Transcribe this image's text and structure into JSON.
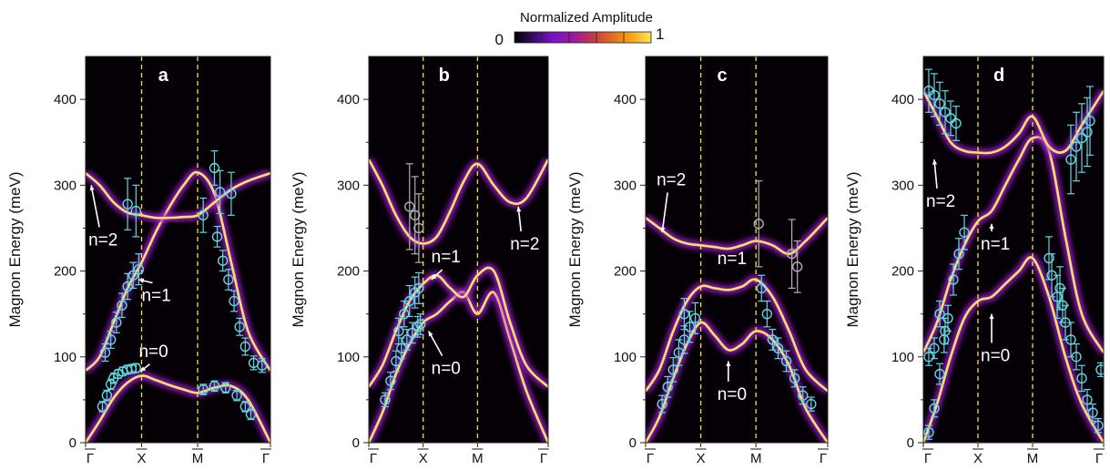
{
  "colorbar": {
    "title": "Normalized Amplitude",
    "min_label": "0",
    "max_label": "1",
    "stops": [
      "#000000",
      "#3a0a6e",
      "#7b12c8",
      "#9c179e",
      "#c23a4a",
      "#e46a1e",
      "#f9a51a",
      "#fce552"
    ]
  },
  "colors": {
    "background": "#050005",
    "band_core": "#ffe066",
    "band_glow": "#9b1fd0",
    "data_point": "#5fd8e0",
    "data_point_grey": "#b0b0b0",
    "hs_line": "#f5e530"
  },
  "y_axis_label": "Magnon Energy (meV)",
  "chart_data": [
    {
      "type": "line",
      "panel": "a",
      "ylim": [
        0,
        450
      ],
      "yticks": [
        0,
        100,
        200,
        300,
        400
      ],
      "x_ticks": [
        "Γ",
        "X",
        "M",
        "Γ"
      ],
      "x_ticks_overlined": true,
      "x_positions": [
        0,
        1,
        2,
        3.3
      ],
      "series": [
        {
          "x": [
            0,
            0.25,
            0.5,
            0.75,
            1,
            1.25,
            1.5,
            1.75,
            2,
            2.3,
            2.6,
            2.9,
            3.3
          ],
          "values": [
            0,
            25,
            52,
            70,
            78,
            73,
            67,
            62,
            58,
            64,
            66,
            50,
            0
          ]
        },
        {
          "x": [
            0,
            0.25,
            0.5,
            0.75,
            1,
            1.25,
            1.5,
            1.75,
            2,
            2.3,
            2.6,
            2.9,
            3.3
          ],
          "values": [
            84,
            100,
            140,
            180,
            210,
            245,
            275,
            300,
            315,
            290,
            210,
            130,
            84
          ]
        },
        {
          "x": [
            0,
            0.25,
            0.5,
            0.75,
            1,
            1.25,
            1.5,
            1.75,
            2,
            2.3,
            2.6,
            2.9,
            3.3
          ],
          "values": [
            314,
            300,
            280,
            268,
            265,
            262,
            262,
            263,
            265,
            280,
            295,
            305,
            314
          ]
        }
      ],
      "points": [
        {
          "x": 0.3,
          "y": 42,
          "err": 6
        },
        {
          "x": 0.38,
          "y": 55,
          "err": 6
        },
        {
          "x": 0.45,
          "y": 68,
          "err": 6
        },
        {
          "x": 0.5,
          "y": 75,
          "err": 6
        },
        {
          "x": 0.58,
          "y": 80,
          "err": 5
        },
        {
          "x": 0.66,
          "y": 83,
          "err": 5
        },
        {
          "x": 0.74,
          "y": 85,
          "err": 5
        },
        {
          "x": 0.82,
          "y": 86,
          "err": 5
        },
        {
          "x": 0.9,
          "y": 87,
          "err": 5
        },
        {
          "x": 0.35,
          "y": 105,
          "err": 10
        },
        {
          "x": 0.45,
          "y": 120,
          "err": 10
        },
        {
          "x": 0.55,
          "y": 140,
          "err": 12
        },
        {
          "x": 0.65,
          "y": 160,
          "err": 14
        },
        {
          "x": 0.75,
          "y": 182,
          "err": 15
        },
        {
          "x": 0.85,
          "y": 195,
          "err": 15
        },
        {
          "x": 0.95,
          "y": 202,
          "err": 18
        },
        {
          "x": 0.75,
          "y": 278,
          "err": 30
        },
        {
          "x": 0.9,
          "y": 270,
          "err": 30
        },
        {
          "x": 2.1,
          "y": 265,
          "err": 20
        },
        {
          "x": 2.3,
          "y": 320,
          "err": 20
        },
        {
          "x": 2.4,
          "y": 292,
          "err": 25
        },
        {
          "x": 2.6,
          "y": 290,
          "err": 25
        },
        {
          "x": 2.35,
          "y": 240,
          "err": 12
        },
        {
          "x": 2.45,
          "y": 212,
          "err": 12
        },
        {
          "x": 2.55,
          "y": 190,
          "err": 12
        },
        {
          "x": 2.65,
          "y": 165,
          "err": 12
        },
        {
          "x": 2.75,
          "y": 135,
          "err": 10
        },
        {
          "x": 2.85,
          "y": 112,
          "err": 10
        },
        {
          "x": 3.0,
          "y": 93,
          "err": 8
        },
        {
          "x": 3.15,
          "y": 90,
          "err": 8
        },
        {
          "x": 2.1,
          "y": 62,
          "err": 6
        },
        {
          "x": 2.3,
          "y": 66,
          "err": 6
        },
        {
          "x": 2.5,
          "y": 64,
          "err": 6
        },
        {
          "x": 2.7,
          "y": 55,
          "err": 6
        },
        {
          "x": 2.85,
          "y": 42,
          "err": 6
        },
        {
          "x": 2.95,
          "y": 33,
          "err": 6
        }
      ],
      "annotations": [
        {
          "text": "n=2",
          "x": 0.05,
          "y": 230,
          "arrow_to": [
            0.1,
            300
          ]
        },
        {
          "text": "n=1",
          "x": 1.0,
          "y": 165,
          "arrow_to": [
            0.95,
            190
          ]
        },
        {
          "text": "n=0",
          "x": 0.95,
          "y": 100,
          "arrow_to": [
            0.98,
            83
          ]
        }
      ]
    },
    {
      "type": "line",
      "panel": "b",
      "ylim": [
        0,
        450
      ],
      "yticks": [
        0,
        100,
        200,
        300,
        400
      ],
      "x_ticks": [
        "Γ",
        "X",
        "M",
        "Γ"
      ],
      "x_ticks_overlined": true,
      "x_positions": [
        0,
        1,
        2,
        3.3
      ],
      "series": [
        {
          "x": [
            0,
            0.25,
            0.5,
            0.75,
            1,
            1.25,
            1.5,
            1.75,
            2,
            2.3,
            2.6,
            2.9,
            3.3
          ],
          "values": [
            0,
            35,
            80,
            115,
            140,
            150,
            165,
            175,
            150,
            175,
            120,
            60,
            0
          ]
        },
        {
          "x": [
            0,
            0.25,
            0.5,
            0.75,
            1,
            1.25,
            1.5,
            1.75,
            2,
            2.3,
            2.6,
            2.9,
            3.3
          ],
          "values": [
            65,
            90,
            130,
            165,
            185,
            195,
            180,
            170,
            195,
            200,
            140,
            90,
            65
          ]
        },
        {
          "x": [
            0,
            0.25,
            0.5,
            0.75,
            1,
            1.25,
            1.5,
            1.75,
            2,
            2.3,
            2.6,
            2.9,
            3.3
          ],
          "values": [
            330,
            300,
            265,
            240,
            232,
            240,
            270,
            305,
            325,
            300,
            280,
            285,
            330
          ]
        }
      ],
      "points": [
        {
          "x": 0.3,
          "y": 50,
          "err": 8
        },
        {
          "x": 0.4,
          "y": 72,
          "err": 10
        },
        {
          "x": 0.5,
          "y": 95,
          "err": 12
        },
        {
          "x": 0.6,
          "y": 110,
          "err": 12
        },
        {
          "x": 0.7,
          "y": 120,
          "err": 12
        },
        {
          "x": 0.8,
          "y": 128,
          "err": 12
        },
        {
          "x": 0.9,
          "y": 135,
          "err": 12
        },
        {
          "x": 0.95,
          "y": 138,
          "err": 12
        },
        {
          "x": 0.55,
          "y": 130,
          "err": 15
        },
        {
          "x": 0.65,
          "y": 150,
          "err": 15
        },
        {
          "x": 0.75,
          "y": 165,
          "err": 18
        },
        {
          "x": 0.85,
          "y": 175,
          "err": 18
        },
        {
          "x": 0.92,
          "y": 180,
          "err": 18
        },
        {
          "x": 0.75,
          "y": 275,
          "err": 50
        },
        {
          "x": 0.85,
          "y": 265,
          "err": 45
        },
        {
          "x": 0.92,
          "y": 250,
          "err": 40
        }
      ],
      "annotations": [
        {
          "text": "n=1",
          "x": 1.15,
          "y": 210,
          "arrow_to": [
            1.15,
            190
          ]
        },
        {
          "text": "n=0",
          "x": 1.15,
          "y": 80,
          "arrow_to": [
            1.1,
            130
          ]
        },
        {
          "text": "n=2",
          "x": 2.6,
          "y": 225,
          "arrow_to": [
            2.75,
            275
          ]
        }
      ]
    },
    {
      "type": "line",
      "panel": "c",
      "ylim": [
        0,
        450
      ],
      "yticks": [
        0,
        100,
        200,
        300,
        400
      ],
      "x_ticks": [
        "Γ",
        "X",
        "M",
        "Γ"
      ],
      "x_ticks_overlined": true,
      "x_positions": [
        0,
        1,
        2,
        3.3
      ],
      "series": [
        {
          "x": [
            0,
            0.25,
            0.5,
            0.75,
            1,
            1.25,
            1.5,
            1.75,
            2,
            2.3,
            2.6,
            2.9,
            3.3
          ],
          "values": [
            0,
            30,
            75,
            115,
            140,
            125,
            108,
            115,
            130,
            120,
            90,
            40,
            0
          ]
        },
        {
          "x": [
            0,
            0.25,
            0.5,
            0.75,
            1,
            1.25,
            1.5,
            1.75,
            2,
            2.3,
            2.6,
            2.9,
            3.3
          ],
          "values": [
            60,
            85,
            130,
            165,
            182,
            180,
            178,
            182,
            190,
            170,
            130,
            85,
            60
          ]
        },
        {
          "x": [
            0,
            0.25,
            0.5,
            0.75,
            1,
            1.25,
            1.5,
            1.75,
            2,
            2.3,
            2.6,
            2.9,
            3.3
          ],
          "values": [
            262,
            250,
            238,
            232,
            230,
            228,
            226,
            230,
            235,
            230,
            220,
            235,
            262
          ]
        }
      ],
      "points": [
        {
          "x": 0.3,
          "y": 45,
          "err": 10
        },
        {
          "x": 0.4,
          "y": 65,
          "err": 12
        },
        {
          "x": 0.5,
          "y": 85,
          "err": 14
        },
        {
          "x": 0.6,
          "y": 105,
          "err": 15
        },
        {
          "x": 0.7,
          "y": 120,
          "err": 16
        },
        {
          "x": 0.8,
          "y": 135,
          "err": 18
        },
        {
          "x": 0.9,
          "y": 145,
          "err": 18
        },
        {
          "x": 0.7,
          "y": 150,
          "err": 18
        },
        {
          "x": 2.1,
          "y": 180,
          "err": 15
        },
        {
          "x": 2.2,
          "y": 150,
          "err": 15
        },
        {
          "x": 2.3,
          "y": 120,
          "err": 12
        },
        {
          "x": 2.4,
          "y": 110,
          "err": 12
        },
        {
          "x": 2.55,
          "y": 95,
          "err": 12
        },
        {
          "x": 2.7,
          "y": 75,
          "err": 10
        },
        {
          "x": 2.85,
          "y": 55,
          "err": 10
        },
        {
          "x": 3.0,
          "y": 45,
          "err": 8
        },
        {
          "x": 2.05,
          "y": 255,
          "err": 50
        },
        {
          "x": 2.65,
          "y": 220,
          "err": 40
        },
        {
          "x": 2.75,
          "y": 205,
          "err": 30
        }
      ],
      "annotations": [
        {
          "text": "n=2",
          "x": 0.2,
          "y": 300,
          "arrow_to": [
            0.3,
            245
          ]
        },
        {
          "text": "n=1",
          "x": 1.3,
          "y": 208
        },
        {
          "text": "n=0",
          "x": 1.3,
          "y": 50,
          "arrow_to": [
            1.5,
            95
          ]
        }
      ]
    },
    {
      "type": "line",
      "panel": "d",
      "ylim": [
        0,
        450
      ],
      "yticks": [
        0,
        100,
        200,
        300,
        400
      ],
      "x_ticks": [
        "Γ",
        "X",
        "M",
        "Γ"
      ],
      "x_ticks_overlined": true,
      "x_positions": [
        0,
        1,
        2,
        3.3
      ],
      "series": [
        {
          "x": [
            0,
            0.25,
            0.5,
            0.75,
            1,
            1.25,
            1.5,
            1.75,
            2,
            2.3,
            2.6,
            2.9,
            3.3
          ],
          "values": [
            0,
            45,
            100,
            145,
            165,
            170,
            185,
            200,
            215,
            170,
            100,
            45,
            0
          ]
        },
        {
          "x": [
            0,
            0.25,
            0.5,
            0.75,
            1,
            1.25,
            1.5,
            1.75,
            2,
            2.3,
            2.6,
            2.9,
            3.3
          ],
          "values": [
            105,
            140,
            190,
            230,
            258,
            270,
            300,
            330,
            355,
            340,
            240,
            150,
            105
          ]
        },
        {
          "x": [
            0,
            0.25,
            0.5,
            0.75,
            1,
            1.25,
            1.5,
            1.75,
            2,
            2.3,
            2.6,
            2.9,
            3.3
          ],
          "values": [
            410,
            380,
            350,
            340,
            338,
            338,
            345,
            360,
            380,
            345,
            340,
            370,
            410
          ]
        }
      ],
      "points": [
        {
          "x": 0.1,
          "y": 12,
          "err": 8
        },
        {
          "x": 0.2,
          "y": 40,
          "err": 10
        },
        {
          "x": 0.3,
          "y": 80,
          "err": 12
        },
        {
          "x": 0.38,
          "y": 120,
          "err": 15
        },
        {
          "x": 0.45,
          "y": 145,
          "err": 15
        },
        {
          "x": 0.55,
          "y": 190,
          "err": 18
        },
        {
          "x": 0.65,
          "y": 220,
          "err": 18
        },
        {
          "x": 0.75,
          "y": 245,
          "err": 20
        },
        {
          "x": 0.1,
          "y": 100,
          "err": 10
        },
        {
          "x": 0.2,
          "y": 110,
          "err": 12
        },
        {
          "x": 0.3,
          "y": 150,
          "err": 15
        },
        {
          "x": 0.4,
          "y": 130,
          "err": 15
        },
        {
          "x": 0.1,
          "y": 410,
          "err": 25
        },
        {
          "x": 0.2,
          "y": 405,
          "err": 25
        },
        {
          "x": 0.3,
          "y": 395,
          "err": 25
        },
        {
          "x": 0.4,
          "y": 385,
          "err": 25
        },
        {
          "x": 0.5,
          "y": 378,
          "err": 20
        },
        {
          "x": 0.6,
          "y": 372,
          "err": 20
        },
        {
          "x": 2.3,
          "y": 215,
          "err": 25
        },
        {
          "x": 2.35,
          "y": 195,
          "err": 25
        },
        {
          "x": 2.45,
          "y": 170,
          "err": 25
        },
        {
          "x": 2.5,
          "y": 180,
          "err": 25
        },
        {
          "x": 2.55,
          "y": 160,
          "err": 20
        },
        {
          "x": 2.6,
          "y": 140,
          "err": 20
        },
        {
          "x": 2.7,
          "y": 120,
          "err": 20
        },
        {
          "x": 2.8,
          "y": 100,
          "err": 15
        },
        {
          "x": 2.9,
          "y": 75,
          "err": 15
        },
        {
          "x": 3.0,
          "y": 50,
          "err": 12
        },
        {
          "x": 3.1,
          "y": 35,
          "err": 10
        },
        {
          "x": 3.2,
          "y": 20,
          "err": 8
        },
        {
          "x": 3.25,
          "y": 85,
          "err": 8
        },
        {
          "x": 2.7,
          "y": 330,
          "err": 40
        },
        {
          "x": 2.8,
          "y": 345,
          "err": 40
        },
        {
          "x": 2.9,
          "y": 355,
          "err": 40
        },
        {
          "x": 3.0,
          "y": 362,
          "err": 40
        },
        {
          "x": 3.05,
          "y": 375,
          "err": 40
        }
      ],
      "annotations": [
        {
          "text": "n=2",
          "x": 0.05,
          "y": 275,
          "arrow_to": [
            0.2,
            330
          ]
        },
        {
          "text": "n=1",
          "x": 1.05,
          "y": 225,
          "arrow_to": [
            1.25,
            255
          ]
        },
        {
          "text": "n=0",
          "x": 1.05,
          "y": 95,
          "arrow_to": [
            1.25,
            150
          ]
        }
      ]
    }
  ]
}
